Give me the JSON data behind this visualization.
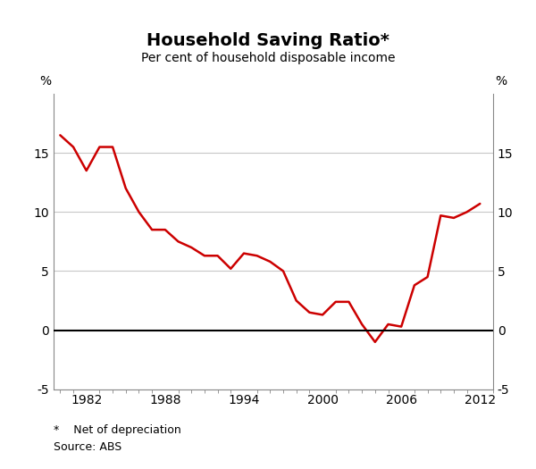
{
  "title": "Household Saving Ratio*",
  "subtitle": "Per cent of household disposable income",
  "ylabel_left": "%",
  "ylabel_right": "%",
  "footnote1": "*    Net of depreciation",
  "footnote2": "Source: ABS",
  "ylim": [
    -5,
    20
  ],
  "yticks": [
    -5,
    0,
    5,
    10,
    15
  ],
  "xlim": [
    1979.5,
    2013.0
  ],
  "xticks": [
    1982,
    1988,
    1994,
    2000,
    2006,
    2012
  ],
  "line_color": "#cc0000",
  "line_width": 1.8,
  "background_color": "#ffffff",
  "grid_color": "#c8c8c8",
  "zero_line_color": "#000000",
  "spine_color": "#888888",
  "years": [
    1980,
    1981,
    1982,
    1983,
    1984,
    1985,
    1986,
    1987,
    1988,
    1989,
    1990,
    1991,
    1992,
    1993,
    1994,
    1995,
    1996,
    1997,
    1998,
    1999,
    2000,
    2001,
    2002,
    2003,
    2004,
    2005,
    2006,
    2007,
    2008,
    2009,
    2010,
    2011,
    2012
  ],
  "values": [
    16.5,
    15.5,
    13.5,
    15.5,
    15.5,
    12.0,
    10.0,
    8.5,
    8.5,
    7.5,
    7.0,
    6.3,
    6.3,
    5.2,
    6.5,
    6.3,
    5.8,
    5.0,
    2.5,
    1.5,
    1.3,
    2.4,
    2.4,
    0.5,
    -1.0,
    0.5,
    0.3,
    3.8,
    4.5,
    9.7,
    9.5,
    10.0,
    10.7
  ]
}
